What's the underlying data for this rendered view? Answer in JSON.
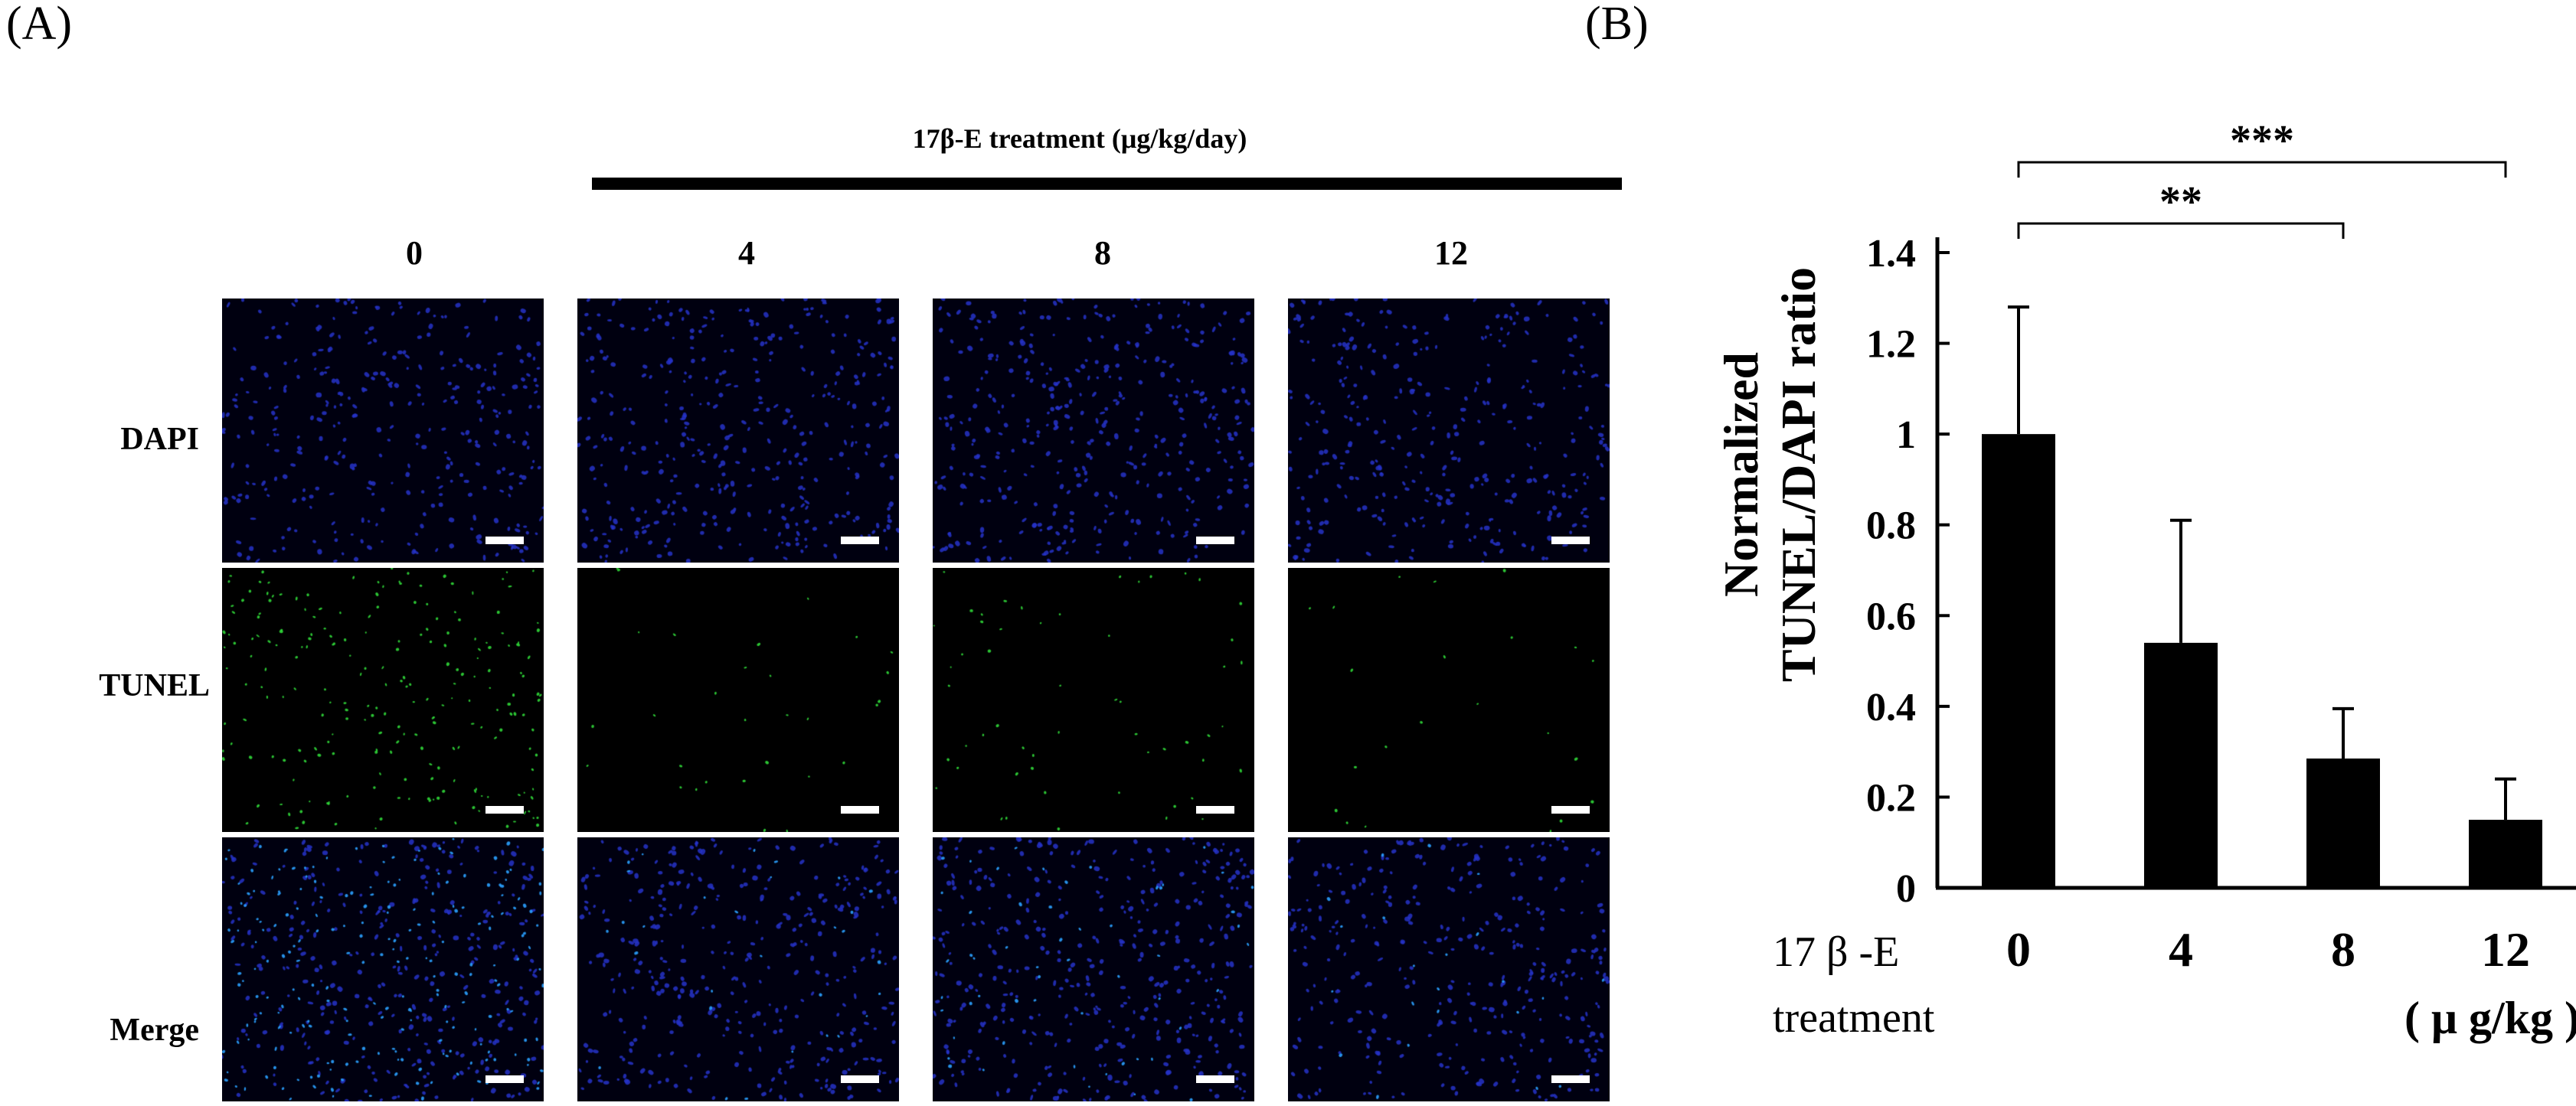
{
  "panel_a": {
    "label": "(A)",
    "treatment_header": "17β-E treatment (μg/kg/day)",
    "doses": [
      "0",
      "4",
      "8",
      "12"
    ],
    "rows": [
      "DAPI",
      "TUNEL",
      "Merge"
    ],
    "colors": {
      "dapi": "#2633c8",
      "tunel": "#30d838",
      "merge": "#2aa0ff",
      "background": "#000010",
      "separator": "#ffffff"
    }
  },
  "panel_b": {
    "label": "(B)",
    "x_prefix_line1": "17 β -E",
    "x_prefix_line2": "treatment",
    "x_unit": "( μ g/kg )",
    "significance": [
      {
        "from": "0",
        "to": "12",
        "label": "***"
      },
      {
        "from": "0",
        "to": "8",
        "label": "**"
      }
    ]
  },
  "chart_data": {
    "type": "bar",
    "categories": [
      "0",
      "4",
      "8",
      "12"
    ],
    "values": [
      1.0,
      0.54,
      0.285,
      0.15
    ],
    "error": [
      0.28,
      0.27,
      0.11,
      0.09
    ],
    "ylabel_line1": "Normalized",
    "ylabel_line2": "TUNEL/DAPI ratio",
    "ylim": [
      0,
      1.4
    ],
    "yticks": [
      "0",
      "0.2",
      "0.4",
      "0.6",
      "0.8",
      "1",
      "1.2",
      "1.4"
    ],
    "bar_color": "#000000",
    "grid": false
  }
}
